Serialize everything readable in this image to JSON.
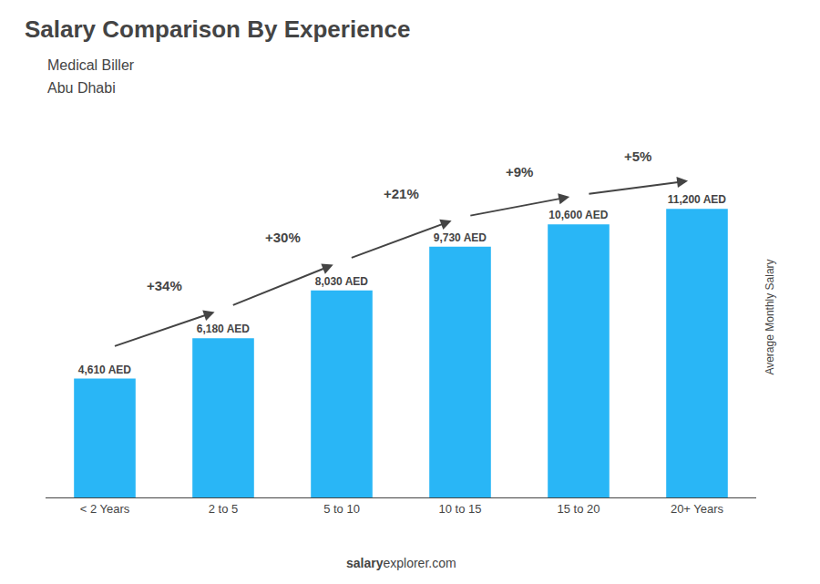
{
  "chart_data": {
    "type": "bar",
    "title": "Salary Comparison By Experience",
    "subtitle": "Medical Biller",
    "annotations": {
      "location": "Abu Dhabi",
      "changes": [
        "+34%",
        "+30%",
        "+21%",
        "+9%",
        "+5%"
      ],
      "footer": [
        "salary",
        "explorer.com"
      ]
    },
    "categories": [
      "< 2 Years",
      "2 to 5",
      "5 to 10",
      "10 to 15",
      "15 to 20",
      "20+ Years"
    ],
    "values": [
      4610,
      6180,
      8030,
      9730,
      10600,
      11200
    ],
    "value_labels": [
      "4,610 AED",
      "6,180 AED",
      "8,030 AED",
      "9,730 AED",
      "10,600 AED",
      "11,200 AED"
    ],
    "data_labels": true,
    "color": "#29b6f6",
    "ylabel": "Average Monthly Salary",
    "ylim": [
      0,
      14000
    ],
    "tick_labels": "x",
    "grid": false
  }
}
